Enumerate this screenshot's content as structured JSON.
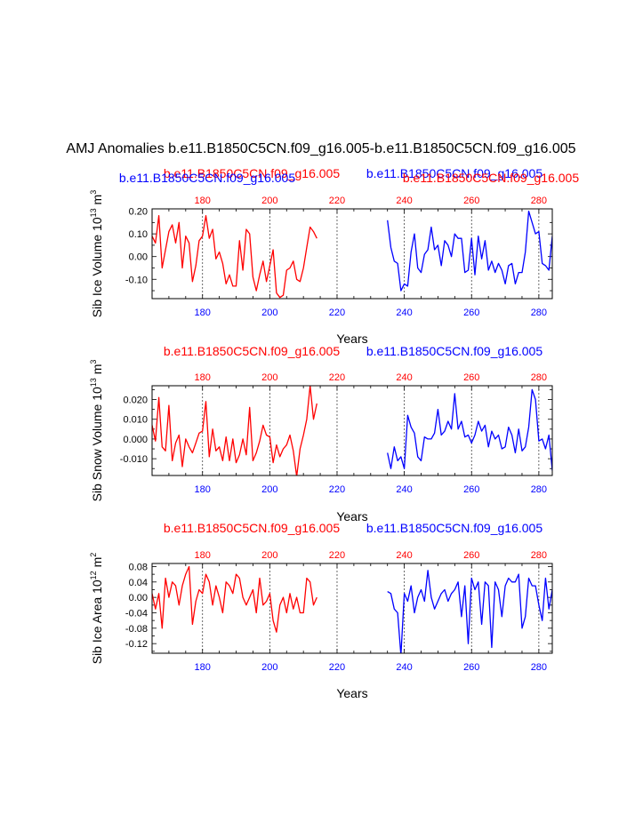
{
  "figure_title": "AMJ Anomalies b.e11.B1850C5CN.f09_g16.005-b.e11.B1850C5CN.f09_g16.005",
  "colors": {
    "series1": "#ff0000",
    "series2": "#0000ff",
    "axis": "#000000",
    "grid": "#000000"
  },
  "chart_data": [
    {
      "type": "line",
      "title_left": "b.e11.B1850C5CN.f09_g16.005",
      "title_right": "b.e11.B1850C5CN.f09_g16.005",
      "title_left_overlap": "b.e11.B1850C5CN.f09_g16.005",
      "title_right_overlap": "b.e11.B1850C5CN.f09_g16.005",
      "ylabel": "Sib Ice Volume 10",
      "ylabel_exp": "13",
      "ylabel_unit": " m",
      "ylabel_unit_exp": "3",
      "xlabel": "Years",
      "xlim": [
        165,
        284
      ],
      "ylim": [
        -0.185,
        0.21
      ],
      "yticks": [
        0.2,
        0.1,
        0.0,
        -0.1
      ],
      "ytick_labels": [
        "0.20",
        "0.10",
        "0.00",
        "-0.10"
      ],
      "xticks": [
        180,
        200,
        220,
        240,
        260,
        280
      ],
      "xtick_labels": [
        "180",
        "200",
        "220",
        "240",
        "260",
        "280"
      ],
      "vgrid": [
        180,
        200,
        220,
        240,
        260,
        280
      ],
      "series": [
        {
          "name": "b.e11.B1850C5CN.f09_g16.005",
          "color": "#ff0000",
          "x": [
            165,
            166,
            167,
            168,
            169,
            170,
            171,
            172,
            173,
            174,
            175,
            176,
            177,
            178,
            179,
            180,
            181,
            182,
            183,
            184,
            185,
            186,
            187,
            188,
            189,
            190,
            191,
            192,
            193,
            194,
            195,
            196,
            197,
            198,
            199,
            200,
            201,
            202,
            203,
            204,
            205,
            206,
            207,
            208,
            209,
            210,
            211,
            212,
            213,
            214
          ],
          "y": [
            0.09,
            0.06,
            0.18,
            -0.05,
            0.03,
            0.11,
            0.14,
            0.06,
            0.15,
            -0.05,
            0.09,
            0.06,
            -0.11,
            -0.04,
            0.07,
            0.09,
            0.18,
            0.08,
            0.12,
            -0.01,
            0.02,
            -0.03,
            -0.12,
            -0.08,
            -0.13,
            -0.13,
            0.07,
            -0.06,
            0.12,
            0.1,
            -0.09,
            -0.15,
            -0.08,
            -0.02,
            -0.11,
            -0.04,
            0.03,
            -0.16,
            -0.18,
            -0.17,
            -0.06,
            -0.05,
            -0.02,
            -0.1,
            -0.11,
            -0.05,
            0.04,
            0.13,
            0.11,
            0.08
          ]
        },
        {
          "name": "b.e11.B1850C5CN.f09_g16.005",
          "color": "#0000ff",
          "x": [
            235,
            236,
            237,
            238,
            239,
            240,
            241,
            242,
            243,
            244,
            245,
            246,
            247,
            248,
            249,
            250,
            251,
            252,
            253,
            254,
            255,
            256,
            257,
            258,
            259,
            260,
            261,
            262,
            263,
            264,
            265,
            266,
            267,
            268,
            269,
            270,
            271,
            272,
            273,
            274,
            275,
            276,
            277,
            278,
            279,
            280,
            281,
            282,
            283,
            284
          ],
          "y": [
            0.16,
            0.04,
            -0.02,
            -0.03,
            -0.15,
            -0.12,
            -0.13,
            0.02,
            0.1,
            -0.05,
            -0.07,
            0.01,
            0.03,
            0.13,
            0.03,
            0.05,
            -0.04,
            0.07,
            0.05,
            0.0,
            0.1,
            0.08,
            0.08,
            -0.07,
            -0.06,
            0.08,
            -0.08,
            0.09,
            -0.01,
            0.07,
            -0.06,
            -0.02,
            -0.07,
            -0.03,
            -0.06,
            -0.12,
            -0.04,
            -0.03,
            -0.12,
            -0.07,
            -0.07,
            0.02,
            0.2,
            0.15,
            0.1,
            0.11,
            -0.03,
            -0.04,
            -0.06,
            0.09
          ]
        }
      ]
    },
    {
      "type": "line",
      "title_left": "b.e11.B1850C5CN.f09_g16.005",
      "title_right": "b.e11.B1850C5CN.f09_g16.005",
      "ylabel": "Sib Snow Volume 10",
      "ylabel_exp": "13",
      "ylabel_unit": " m",
      "ylabel_unit_exp": "3",
      "xlabel": "Years",
      "xlim": [
        165,
        284
      ],
      "ylim": [
        -0.0185,
        0.027
      ],
      "yticks": [
        0.02,
        0.01,
        0.0,
        -0.01
      ],
      "ytick_labels": [
        "0.020",
        "0.010",
        "0.000",
        "-0.010"
      ],
      "xticks": [
        180,
        200,
        220,
        240,
        260,
        280
      ],
      "xtick_labels": [
        "180",
        "200",
        "220",
        "240",
        "260",
        "280"
      ],
      "vgrid": [
        180,
        200,
        220,
        240,
        260,
        280
      ],
      "series": [
        {
          "name": "b.e11.B1850C5CN.f09_g16.005",
          "color": "#ff0000",
          "x": [
            165,
            166,
            167,
            168,
            169,
            170,
            171,
            172,
            173,
            174,
            175,
            176,
            177,
            178,
            179,
            180,
            181,
            182,
            183,
            184,
            185,
            186,
            187,
            188,
            189,
            190,
            191,
            192,
            193,
            194,
            195,
            196,
            197,
            198,
            199,
            200,
            201,
            202,
            203,
            204,
            205,
            206,
            207,
            208,
            209,
            210,
            211,
            212,
            213,
            214
          ],
          "y": [
            0.007,
            -0.001,
            0.021,
            -0.004,
            -0.006,
            0.017,
            -0.011,
            -0.002,
            0.002,
            -0.014,
            0.0,
            -0.004,
            -0.007,
            -0.002,
            0.003,
            0.004,
            0.019,
            -0.009,
            0.005,
            -0.006,
            -0.004,
            -0.011,
            0.001,
            -0.011,
            0.0,
            -0.012,
            -0.008,
            0.0,
            -0.008,
            0.016,
            -0.011,
            -0.007,
            -0.001,
            0.007,
            0.002,
            0.001,
            -0.012,
            -0.003,
            -0.009,
            -0.005,
            -0.003,
            0.002,
            -0.006,
            -0.019,
            -0.005,
            0.002,
            0.01,
            0.027,
            0.01,
            0.018
          ]
        },
        {
          "name": "b.e11.B1850C5CN.f09_g16.005",
          "color": "#0000ff",
          "x": [
            235,
            236,
            237,
            238,
            239,
            240,
            241,
            242,
            243,
            244,
            245,
            246,
            247,
            248,
            249,
            250,
            251,
            252,
            253,
            254,
            255,
            256,
            257,
            258,
            259,
            260,
            261,
            262,
            263,
            264,
            265,
            266,
            267,
            268,
            269,
            270,
            271,
            272,
            273,
            274,
            275,
            276,
            277,
            278,
            279,
            280,
            281,
            282,
            283,
            284
          ],
          "y": [
            -0.007,
            -0.015,
            -0.004,
            -0.011,
            -0.009,
            -0.015,
            0.012,
            0.006,
            0.003,
            -0.009,
            -0.011,
            0.001,
            0.0,
            0.0,
            0.003,
            0.015,
            0.002,
            0.004,
            0.009,
            0.005,
            0.023,
            0.005,
            0.009,
            0.001,
            0.002,
            -0.002,
            0.002,
            0.009,
            0.004,
            0.007,
            -0.004,
            0.004,
            0.0,
            0.002,
            -0.005,
            -0.004,
            0.006,
            0.002,
            -0.007,
            0.005,
            -0.006,
            -0.004,
            0.006,
            0.025,
            0.02,
            -0.001,
            0.0,
            -0.005,
            0.002,
            -0.016
          ]
        }
      ]
    },
    {
      "type": "line",
      "title_left": "b.e11.B1850C5CN.f09_g16.005",
      "title_right": "b.e11.B1850C5CN.f09_g16.005",
      "ylabel": "Sib Ice Area 10",
      "ylabel_exp": "12",
      "ylabel_unit": " m",
      "ylabel_unit_exp": "2",
      "xlabel": "Years",
      "xlim": [
        165,
        284
      ],
      "ylim": [
        -0.145,
        0.088
      ],
      "yticks": [
        0.08,
        0.04,
        0.0,
        -0.04,
        -0.08,
        -0.12
      ],
      "ytick_labels": [
        "0.08",
        "0.04",
        "0.00",
        "-0.04",
        "-0.08",
        "-0.12"
      ],
      "xticks": [
        180,
        200,
        220,
        240,
        260,
        280
      ],
      "xtick_labels": [
        "180",
        "200",
        "220",
        "240",
        "260",
        "280"
      ],
      "vgrid": [
        180,
        200,
        220,
        240,
        260,
        280
      ],
      "series": [
        {
          "name": "b.e11.B1850C5CN.f09_g16.005",
          "color": "#ff0000",
          "x": [
            165,
            166,
            167,
            168,
            169,
            170,
            171,
            172,
            173,
            174,
            175,
            176,
            177,
            178,
            179,
            180,
            181,
            182,
            183,
            184,
            185,
            186,
            187,
            188,
            189,
            190,
            191,
            192,
            193,
            194,
            195,
            196,
            197,
            198,
            199,
            200,
            201,
            202,
            203,
            204,
            205,
            206,
            207,
            208,
            209,
            210,
            211,
            212,
            213,
            214
          ],
          "y": [
            0.01,
            -0.03,
            0.01,
            -0.08,
            0.05,
            0.0,
            0.04,
            0.03,
            -0.02,
            0.03,
            0.06,
            0.08,
            -0.07,
            -0.01,
            0.02,
            0.01,
            0.06,
            0.04,
            -0.02,
            0.03,
            0.0,
            -0.04,
            0.04,
            0.03,
            0.01,
            0.06,
            0.05,
            0.0,
            -0.02,
            0.0,
            0.02,
            -0.04,
            0.05,
            -0.02,
            -0.01,
            0.01,
            -0.06,
            -0.09,
            -0.02,
            0.0,
            -0.04,
            0.01,
            -0.03,
            0.0,
            -0.04,
            -0.04,
            0.05,
            0.04,
            -0.02,
            0.0
          ]
        },
        {
          "name": "b.e11.B1850C5CN.f09_g16.005",
          "color": "#0000ff",
          "x": [
            235,
            236,
            237,
            238,
            239,
            240,
            241,
            242,
            243,
            244,
            245,
            246,
            247,
            248,
            249,
            250,
            251,
            252,
            253,
            254,
            255,
            256,
            257,
            258,
            259,
            260,
            261,
            262,
            263,
            264,
            265,
            266,
            267,
            268,
            269,
            270,
            271,
            272,
            273,
            274,
            275,
            276,
            277,
            278,
            279,
            280,
            281,
            282,
            283,
            284
          ],
          "y": [
            0.015,
            0.01,
            -0.03,
            -0.04,
            -0.15,
            0.01,
            -0.01,
            0.03,
            -0.04,
            0.0,
            0.02,
            -0.01,
            0.07,
            0.0,
            -0.03,
            -0.01,
            0.01,
            0.02,
            -0.01,
            0.01,
            0.02,
            0.04,
            -0.05,
            0.03,
            -0.12,
            0.05,
            0.02,
            0.04,
            -0.07,
            0.04,
            0.03,
            -0.13,
            0.04,
            0.02,
            -0.05,
            0.03,
            0.05,
            0.04,
            0.04,
            0.06,
            -0.08,
            -0.05,
            0.05,
            0.03,
            0.03,
            -0.02,
            -0.06,
            0.05,
            -0.03,
            0.02
          ]
        }
      ]
    }
  ]
}
